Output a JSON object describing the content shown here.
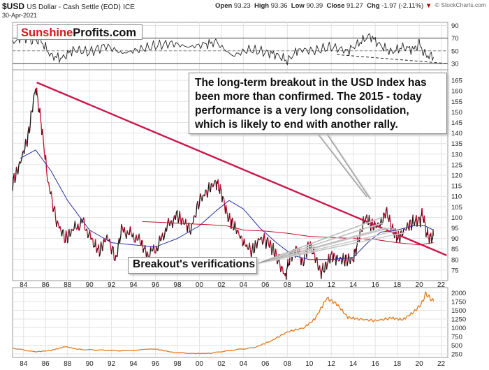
{
  "header": {
    "symbol": "$USD",
    "name": "US Dollar - Cash Settle (EOD)",
    "exchange": "ICE",
    "date": "30-Apr-2021",
    "open_label": "Open",
    "open_value": "93.23",
    "high_label": "High",
    "high_value": "93.36",
    "low_label": "Low",
    "low_value": "90.39",
    "close_label": "Close",
    "close_value": "91.27",
    "chg_label": "Chg",
    "chg_value": "-1.97 (-2.11%)",
    "chg_arrow": "▼",
    "credit": "© StockCharts.com"
  },
  "logo": {
    "part1": "Sunshine",
    "part2": "Profits.com"
  },
  "annotations": {
    "main": "The long-term breakout in the USD Index has been more than confirmed. The 2015 - today performance is a very long consolidation, which is likely to end with another rally.",
    "verifications": "Breakout's verifications"
  },
  "colors": {
    "price_up": "#111111",
    "price_down": "#c0102c",
    "trendline": "#c8174a",
    "ma_short": "#2832a0",
    "ma_long": "#c0102c",
    "gold": "#e07a1c",
    "grid": "#e3e3e3"
  },
  "chart_data": [
    {
      "type": "line",
      "panel": "RSI indicator (top)",
      "ylim": [
        20,
        95
      ],
      "yticks": [
        30,
        50,
        70,
        90
      ],
      "reference_levels": [
        70,
        50,
        30
      ],
      "x": [
        1983.0,
        1984.0,
        1984.8,
        1985.5,
        1986.5,
        1987.5,
        1988.5,
        1990.0,
        1991.5,
        1993.0,
        1994.5,
        1996.0,
        1997.5,
        1999.0,
        2000.5,
        2001.5,
        2003.0,
        2004.5,
        2006.0,
        2007.0,
        2008.0,
        2009.0,
        2010.5,
        2012.0,
        2013.5,
        2014.5,
        2015.5,
        2016.5,
        2017.5,
        2018.5,
        2019.5,
        2020.0,
        2020.5,
        2021.3
      ],
      "values": [
        64,
        72,
        66,
        68,
        42,
        38,
        52,
        48,
        58,
        46,
        52,
        58,
        62,
        56,
        60,
        64,
        42,
        52,
        48,
        44,
        34,
        52,
        50,
        56,
        50,
        62,
        74,
        58,
        48,
        56,
        52,
        62,
        44,
        40
      ],
      "dashed_trendline": {
        "x": [
          2012.5,
          2022.5
        ],
        "y": [
          44,
          30
        ]
      }
    },
    {
      "type": "line",
      "panel": "USD Index (main)",
      "ylim": [
        70,
        170
      ],
      "yticks": [
        75,
        80,
        85,
        90,
        95,
        100,
        105,
        110,
        115,
        120,
        125,
        130,
        135,
        140,
        145,
        150,
        155,
        160,
        165
      ],
      "xlim": [
        1983.0,
        2022.6
      ],
      "xticks": [
        1984,
        1986,
        1988,
        1990,
        1992,
        1994,
        1996,
        1998,
        2000,
        2002,
        2004,
        2006,
        2008,
        2010,
        2012,
        2014,
        2016,
        2018,
        2020,
        2022
      ],
      "xtick_labels": [
        "84",
        "86",
        "88",
        "90",
        "92",
        "94",
        "96",
        "98",
        "00",
        "02",
        "04",
        "06",
        "08",
        "10",
        "12",
        "14",
        "16",
        "18",
        "20",
        "22"
      ],
      "price": {
        "x": [
          1983.0,
          1983.7,
          1984.4,
          1985.1,
          1985.6,
          1986.2,
          1987.0,
          1987.8,
          1988.5,
          1989.4,
          1990.3,
          1990.9,
          1991.6,
          1992.4,
          1992.9,
          1993.8,
          1994.7,
          1995.3,
          1996.2,
          1997.1,
          1998.0,
          1998.7,
          1999.2,
          2000.0,
          2000.8,
          2001.5,
          2002.0,
          2002.6,
          2003.3,
          2004.0,
          2004.8,
          2005.5,
          2006.3,
          2007.0,
          2007.8,
          2008.3,
          2008.9,
          2009.4,
          2010.0,
          2010.5,
          2011.0,
          2011.4,
          2012.0,
          2012.6,
          2013.3,
          2014.0,
          2014.5,
          2015.1,
          2015.8,
          2016.5,
          2017.0,
          2017.6,
          2018.1,
          2018.8,
          2019.5,
          2020.1,
          2020.3,
          2020.7,
          2021.0,
          2021.3
        ],
        "values": [
          116,
          126,
          138,
          162,
          145,
          118,
          98,
          90,
          94,
          98,
          88,
          84,
          91,
          80,
          94,
          92,
          88,
          82,
          86,
          96,
          101,
          97,
          94,
          108,
          113,
          117,
          112,
          100,
          95,
          88,
          84,
          90,
          88,
          82,
          72,
          82,
          85,
          78,
          88,
          82,
          74,
          76,
          82,
          80,
          80,
          80,
          90,
          100,
          96,
          97,
          103,
          94,
          90,
          95,
          98,
          99,
          102,
          92,
          90,
          91.3
        ]
      },
      "moving_average_short": {
        "x": [
          1983.7,
          1985.1,
          1986.5,
          1988.0,
          1990.0,
          1992.0,
          1994.0,
          1996.0,
          1998.0,
          2000.0,
          2001.5,
          2002.7,
          2004.0,
          2005.5,
          2007.0,
          2008.5,
          2010.0,
          2012.0,
          2014.0,
          2015.3,
          2016.5,
          2018.0,
          2019.5,
          2020.5,
          2021.3
        ],
        "values": [
          128,
          132,
          122,
          108,
          94,
          88,
          87,
          86,
          90,
          96,
          103,
          108,
          104,
          95,
          88,
          82,
          80,
          80,
          81,
          88,
          93,
          94,
          96,
          96,
          94
        ]
      },
      "moving_average_long": {
        "x": [
          1994.8,
          1997.0,
          1999.0,
          2001.0,
          2002.5,
          2004.0,
          2006.0,
          2008.0,
          2010.0,
          2012.0,
          2014.0,
          2016.0,
          2018.0,
          2020.0,
          2021.3
        ],
        "values": [
          98,
          97.5,
          97,
          96.5,
          96,
          94,
          93.5,
          92.5,
          91,
          90.5,
          90,
          89.5,
          88,
          87,
          88
        ]
      },
      "trendline": {
        "x": [
          1985.2,
          2022.5
        ],
        "y": [
          164,
          82
        ]
      }
    },
    {
      "type": "line",
      "panel": "Gold price (bottom)",
      "ylim": [
        150,
        2150
      ],
      "yticks": [
        250,
        500,
        750,
        1000,
        1250,
        1500,
        1750,
        2000
      ],
      "x": [
        1983.0,
        1985.0,
        1986.5,
        1987.8,
        1989.0,
        1991.0,
        1993.0,
        1996.0,
        1997.5,
        1999.5,
        2001.0,
        2003.0,
        2005.0,
        2006.5,
        2008.0,
        2009.5,
        2010.5,
        2011.6,
        2012.5,
        2013.5,
        2014.5,
        2016.0,
        2017.5,
        2018.5,
        2019.5,
        2020.2,
        2020.6,
        2021.0,
        2021.3
      ],
      "values": [
        420,
        310,
        350,
        460,
        380,
        360,
        340,
        390,
        300,
        260,
        270,
        360,
        430,
        620,
        880,
        1000,
        1250,
        1850,
        1680,
        1300,
        1250,
        1200,
        1280,
        1230,
        1450,
        1680,
        1980,
        1850,
        1760
      ]
    }
  ]
}
